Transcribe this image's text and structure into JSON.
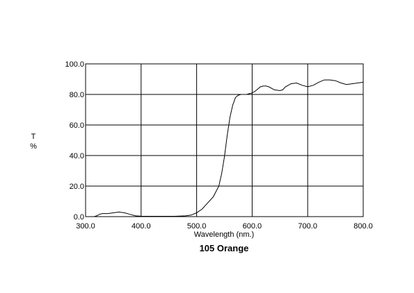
{
  "chart_data": {
    "type": "line",
    "title": "105 Orange",
    "xlabel": "Wavelength (nm.)",
    "ylabel_line1": "T",
    "ylabel_line2": "%",
    "xlim": [
      300,
      800
    ],
    "ylim": [
      0,
      100
    ],
    "grid": true,
    "x_ticks": [
      "300.0",
      "400.0",
      "500.0",
      "600.0",
      "700.0",
      "800.0"
    ],
    "y_ticks": [
      "0.0",
      "20.0",
      "40.0",
      "60.0",
      "80.0",
      "100.0"
    ],
    "series": [
      {
        "x": [
          315,
          320,
          325,
          330,
          340,
          350,
          360,
          370,
          380,
          390,
          400,
          420,
          440,
          460,
          480,
          490,
          500,
          510,
          520,
          530,
          540,
          545,
          550,
          555,
          560,
          565,
          570,
          575,
          580,
          585,
          590,
          595,
          600,
          605,
          610,
          615,
          620,
          625,
          630,
          640,
          650,
          655,
          660,
          670,
          680,
          690,
          700,
          710,
          720,
          730,
          740,
          750,
          760,
          770,
          780,
          790,
          800
        ],
        "y": [
          0,
          0.5,
          1.5,
          2,
          2,
          2.5,
          3,
          2.5,
          1.5,
          0.5,
          0.3,
          0.2,
          0.2,
          0.2,
          0.5,
          1,
          2.5,
          5,
          9,
          13,
          20,
          28,
          39,
          53,
          65,
          73,
          78,
          79.5,
          80,
          80,
          80,
          80.5,
          81,
          82,
          83.5,
          85,
          85.5,
          85.5,
          85,
          83,
          82.5,
          83,
          85,
          87,
          87.5,
          86,
          85,
          86,
          88,
          89.5,
          89.5,
          89,
          87.5,
          86.5,
          87,
          87.5,
          88
        ]
      }
    ]
  }
}
